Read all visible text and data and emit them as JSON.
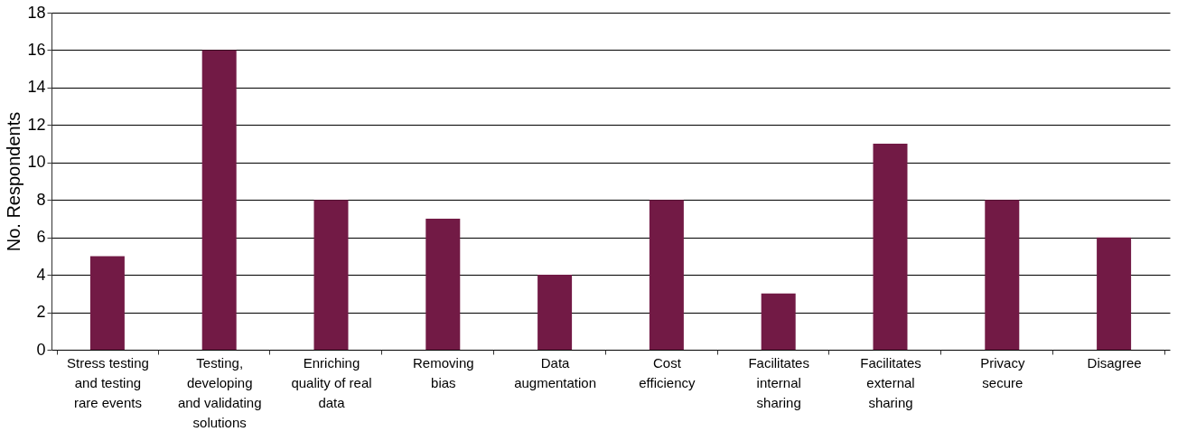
{
  "chart_data": {
    "type": "bar",
    "ylabel": "No. Respondents",
    "categories": [
      "Stress testing\nand testing\nrare events",
      "Testing,\ndeveloping\nand validating\nsolutions",
      "Enriching\nquality of real\ndata",
      "Removing\nbias",
      "Data\naugmentation",
      "Cost\nefficiency",
      "Facilitates\ninternal\nsharing",
      "Facilitates\nexternal\nsharing",
      "Privacy\nsecure",
      "Disagree"
    ],
    "values": [
      5,
      16,
      8,
      7,
      4,
      8,
      3,
      11,
      8,
      6
    ],
    "color": "#721a45",
    "ylim": [
      0,
      18
    ],
    "yticks": [
      0,
      2,
      4,
      6,
      8,
      10,
      12,
      14,
      16,
      18
    ],
    "grid": "y"
  }
}
